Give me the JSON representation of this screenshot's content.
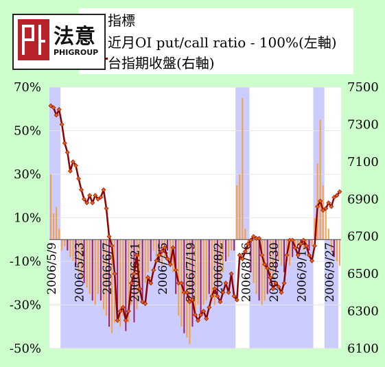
{
  "logo": {
    "cn": "法意",
    "en": "PHIGROUP"
  },
  "legend": {
    "items": [
      {
        "label": "指標",
        "color": "#ccccff",
        "kind": "band"
      },
      {
        "label": "近月OI put/call ratio - 100%(左軸)",
        "color": "#f4a040",
        "kind": "bar"
      },
      {
        "label": "台指期收盤(右軸)",
        "color": "#8b0000",
        "kind": "line"
      }
    ]
  },
  "chart_data": {
    "type": "bar+line",
    "left_axis": {
      "range": [
        -50,
        70
      ],
      "ticks": [
        "70%",
        "50%",
        "30%",
        "10%",
        "-10%",
        "-30%",
        "-50%"
      ],
      "tick_values": [
        70,
        50,
        30,
        10,
        -10,
        -30,
        -50
      ]
    },
    "right_axis": {
      "range": [
        6100,
        7500
      ],
      "ticks": [
        "7500",
        "7300",
        "7100",
        "6900",
        "6700",
        "6500",
        "6300",
        "6100"
      ],
      "tick_values": [
        7500,
        7300,
        7100,
        6900,
        6700,
        6500,
        6300,
        6100
      ]
    },
    "x_tick_labels": [
      "2006/5/9",
      "2006/5/23",
      "2006/6/7",
      "2006/6/21",
      "2006/7/5",
      "2006/7/19",
      "2006/8/2",
      "2006/8/16",
      "2006/8/30",
      "2006/9/13",
      "2006/9/27"
    ],
    "x_tick_indices": [
      0,
      10,
      20,
      30,
      40,
      50,
      60,
      70,
      80,
      90,
      100
    ],
    "indicator_bands": [
      {
        "index_range": [
          0,
          4
        ],
        "value": 70
      },
      {
        "index_range": [
          4,
          67
        ],
        "value": -50
      },
      {
        "index_range": [
          67,
          72
        ],
        "value": 70
      },
      {
        "index_range": [
          72,
          95
        ],
        "value": -50
      },
      {
        "index_range": [
          95,
          99
        ],
        "value": 70
      },
      {
        "index_range": [
          99,
          104
        ],
        "value": -50
      }
    ],
    "series": [
      {
        "name": "近月OI put/call ratio - 100%(左軸)",
        "axis": "left",
        "values": [
          30,
          12,
          15,
          5,
          -5,
          -3,
          -5,
          -8,
          -10,
          -12,
          -15,
          -18,
          -20,
          -22,
          -25,
          -28,
          -30,
          -25,
          -28,
          -32,
          -35,
          -40,
          -43,
          -38,
          -35,
          -40,
          -35,
          -42,
          -38,
          -30,
          -38,
          -32,
          -25,
          -28,
          -20,
          -15,
          -10,
          -5,
          -8,
          -10,
          -12,
          -8,
          -5,
          -10,
          -15,
          -25,
          -35,
          -40,
          -43,
          -45,
          -48,
          -40,
          -35,
          -30,
          -35,
          -30,
          -28,
          -25,
          -28,
          -30,
          -25,
          -20,
          -15,
          -10,
          -8,
          -5,
          -5,
          25,
          30,
          65,
          5,
          -5,
          -15,
          -20,
          -25,
          -28,
          -30,
          -28,
          -25,
          -20,
          -18,
          -15,
          -10,
          -12,
          -15,
          -10,
          -12,
          -8,
          -5,
          -3,
          -2,
          -5,
          -3,
          -5,
          -3,
          10,
          35,
          55,
          25,
          15,
          5,
          -5,
          -8,
          -10,
          -12
        ]
      },
      {
        "name": "台指期收盤(右軸)",
        "axis": "right",
        "values": [
          7400,
          7390,
          7350,
          7380,
          7300,
          7200,
          7150,
          7050,
          7100,
          7080,
          7010,
          6950,
          6900,
          6880,
          6920,
          6880,
          6920,
          6900,
          6910,
          6950,
          6850,
          6700,
          6650,
          6500,
          6250,
          6300,
          6320,
          6250,
          6300,
          6450,
          6500,
          6600,
          6420,
          6350,
          6340,
          6480,
          6450,
          6520,
          6570,
          6600,
          6620,
          6640,
          6580,
          6550,
          6640,
          6520,
          6450,
          6450,
          6400,
          6400,
          6350,
          6360,
          6280,
          6250,
          6280,
          6300,
          6260,
          6320,
          6380,
          6420,
          6380,
          6350,
          6400,
          6450,
          6400,
          6500,
          6380,
          6360,
          6600,
          6580,
          6620,
          6660,
          6680,
          6700,
          6690,
          6690,
          6600,
          6550,
          6530,
          6480,
          6420,
          6450,
          6430,
          6400,
          6450,
          6600,
          6680,
          6680,
          6640,
          6600,
          6660,
          6680,
          6650,
          6600,
          6570,
          6650,
          6860,
          6890,
          6840,
          6850,
          6880,
          6860,
          6910,
          6920,
          6940
        ]
      }
    ]
  }
}
